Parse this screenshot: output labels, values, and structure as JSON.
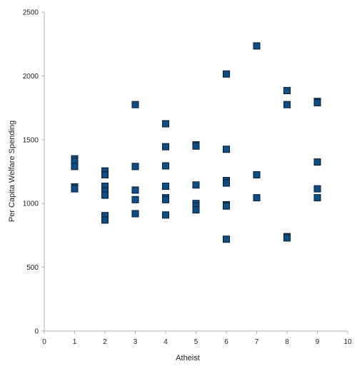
{
  "chart_data": {
    "type": "scatter",
    "title": "",
    "xlabel": "Atheist",
    "ylabel": "Per Capita Welfare Spending",
    "xlim": [
      0,
      10
    ],
    "ylim": [
      0,
      2500
    ],
    "x_ticks": [
      0,
      1,
      2,
      3,
      4,
      5,
      6,
      7,
      8,
      9,
      10
    ],
    "y_ticks": [
      0,
      500,
      1000,
      1500,
      2000,
      2500
    ],
    "grid": false,
    "legend": "none",
    "marker": "square",
    "colors": {
      "marker_fill": "#0b4f8a",
      "marker_stroke": "#0a1a2e",
      "axis": "#b0b0b0"
    },
    "points": [
      [
        1,
        1350
      ],
      [
        1,
        1330
      ],
      [
        1,
        1290
      ],
      [
        1,
        1130
      ],
      [
        1,
        1115
      ],
      [
        2,
        1255
      ],
      [
        2,
        1225
      ],
      [
        2,
        1135
      ],
      [
        2,
        1100
      ],
      [
        2,
        1065
      ],
      [
        2,
        905
      ],
      [
        2,
        870
      ],
      [
        3,
        1775
      ],
      [
        3,
        1290
      ],
      [
        3,
        1105
      ],
      [
        3,
        1030
      ],
      [
        3,
        920
      ],
      [
        4,
        1625
      ],
      [
        4,
        1445
      ],
      [
        4,
        1295
      ],
      [
        4,
        1135
      ],
      [
        4,
        1045
      ],
      [
        4,
        1030
      ],
      [
        4,
        910
      ],
      [
        5,
        1460
      ],
      [
        5,
        1450
      ],
      [
        5,
        1145
      ],
      [
        5,
        1000
      ],
      [
        5,
        980
      ],
      [
        5,
        950
      ],
      [
        6,
        2015
      ],
      [
        6,
        1425
      ],
      [
        6,
        1180
      ],
      [
        6,
        1160
      ],
      [
        6,
        990
      ],
      [
        6,
        980
      ],
      [
        6,
        720
      ],
      [
        7,
        2235
      ],
      [
        7,
        1225
      ],
      [
        7,
        1045
      ],
      [
        8,
        1885
      ],
      [
        8,
        1775
      ],
      [
        8,
        740
      ],
      [
        8,
        730
      ],
      [
        9,
        1800
      ],
      [
        9,
        1790
      ],
      [
        9,
        1325
      ],
      [
        9,
        1115
      ],
      [
        9,
        1045
      ]
    ]
  }
}
